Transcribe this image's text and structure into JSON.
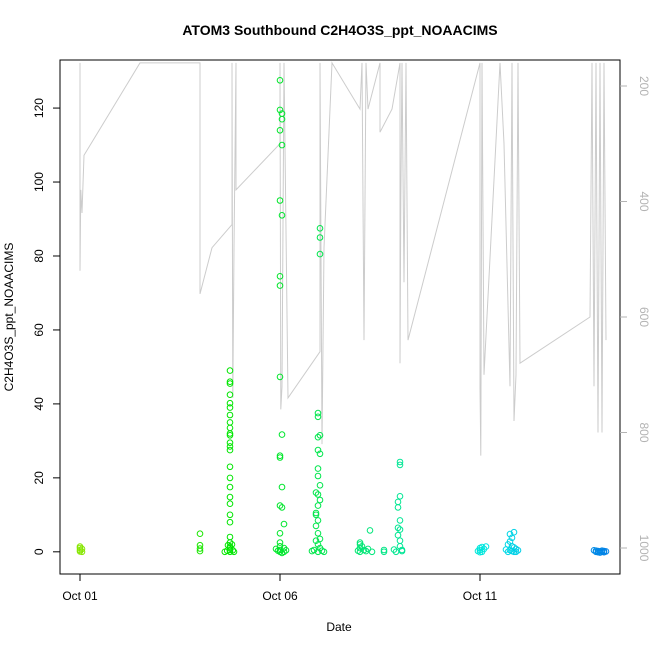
{
  "chart_data": {
    "type": "scatter",
    "title": "ATOM3 Southbound C2H4O3S_ppt_NOAACIMS",
    "xlabel": "Date",
    "ylabel": "C2H4O3S_ppt_NOAACIMS",
    "x_tick_labels": [
      "Oct 01",
      "Oct 06",
      "Oct 11"
    ],
    "x_ticks_day": [
      1,
      6,
      11
    ],
    "xlim_day": [
      0.5,
      14.5
    ],
    "ylim": [
      -6,
      133
    ],
    "y_ticks": [
      0,
      20,
      40,
      60,
      80,
      100,
      120
    ],
    "y2_ticks": [
      200,
      400,
      600,
      800,
      1000
    ],
    "y2lim_reversed": [
      1045,
      155
    ],
    "grid": false,
    "legend": "none",
    "series": [
      {
        "points": [
          [
            1.0,
            1.4
          ],
          [
            1.0,
            1.0
          ],
          [
            1.0,
            0.5
          ],
          [
            1.0,
            0.1
          ],
          [
            1.05,
            0.8
          ],
          [
            1.05,
            0.0
          ],
          [
            4.0,
            4.9
          ],
          [
            4.0,
            1.8
          ],
          [
            4.0,
            0.9
          ],
          [
            4.0,
            0.2
          ],
          [
            4.75,
            49
          ],
          [
            4.75,
            46
          ],
          [
            4.75,
            45.5
          ],
          [
            4.75,
            42.5
          ],
          [
            4.75,
            40.2
          ],
          [
            4.75,
            39
          ],
          [
            4.75,
            37
          ],
          [
            4.75,
            35
          ],
          [
            4.75,
            33.5
          ],
          [
            4.75,
            32.0
          ],
          [
            4.75,
            31.5
          ],
          [
            4.75,
            29.5
          ],
          [
            4.75,
            28.5
          ],
          [
            4.75,
            27.5
          ],
          [
            4.75,
            23.0
          ],
          [
            4.75,
            20.0
          ],
          [
            4.75,
            17.5
          ],
          [
            4.75,
            14.8
          ],
          [
            4.75,
            13.0
          ],
          [
            4.75,
            10.0
          ],
          [
            4.75,
            8.0
          ],
          [
            4.75,
            4.0
          ],
          [
            4.75,
            2.5
          ],
          [
            4.75,
            1.5
          ],
          [
            4.75,
            1.0
          ],
          [
            4.75,
            0.5
          ],
          [
            4.75,
            0.0
          ],
          [
            4.68,
            0.3
          ],
          [
            4.62,
            0.0
          ],
          [
            4.82,
            0.4
          ],
          [
            4.8,
            2.0
          ],
          [
            4.7,
            1.8
          ],
          [
            4.85,
            0.0
          ],
          [
            6.0,
            127.5
          ],
          [
            6.0,
            119.5
          ],
          [
            6.05,
            118.5
          ],
          [
            6.05,
            117
          ],
          [
            6.0,
            114
          ],
          [
            6.05,
            110
          ],
          [
            6.0,
            95
          ],
          [
            6.05,
            91
          ],
          [
            6.0,
            74.5
          ],
          [
            6.0,
            72
          ],
          [
            6.0,
            47.3
          ],
          [
            6.05,
            31.7
          ],
          [
            6.0,
            26.0
          ],
          [
            6.0,
            25.5
          ],
          [
            6.05,
            17.5
          ],
          [
            6.0,
            12.5
          ],
          [
            6.05,
            12.0
          ],
          [
            6.1,
            7.5
          ],
          [
            6.0,
            5.0
          ],
          [
            6.0,
            2.5
          ],
          [
            6.0,
            1.5
          ],
          [
            6.0,
            0.5
          ],
          [
            6.0,
            0.0
          ],
          [
            5.95,
            0.3
          ],
          [
            6.1,
            0.0
          ],
          [
            6.15,
            0.4
          ],
          [
            6.1,
            1.0
          ],
          [
            5.9,
            0.8
          ],
          [
            6.05,
            -0.3
          ],
          [
            7.0,
            87.5
          ],
          [
            7.0,
            85
          ],
          [
            7.0,
            80.5
          ],
          [
            6.95,
            37.5
          ],
          [
            6.95,
            36.5
          ],
          [
            7.0,
            31.5
          ],
          [
            6.95,
            31.0
          ],
          [
            6.95,
            27.5
          ],
          [
            7.0,
            26.5
          ],
          [
            6.95,
            22.5
          ],
          [
            6.95,
            20.5
          ],
          [
            7.0,
            18.0
          ],
          [
            6.9,
            16.0
          ],
          [
            6.95,
            15.5
          ],
          [
            7.0,
            14.0
          ],
          [
            6.95,
            12.5
          ],
          [
            6.9,
            10.5
          ],
          [
            6.9,
            10.0
          ],
          [
            6.95,
            8.5
          ],
          [
            6.9,
            7.0
          ],
          [
            6.95,
            5.0
          ],
          [
            7.0,
            3.5
          ],
          [
            6.9,
            3.0
          ],
          [
            6.95,
            2.0
          ],
          [
            7.0,
            1.0
          ],
          [
            6.85,
            0.5
          ],
          [
            6.95,
            0.0
          ],
          [
            7.05,
            0.3
          ],
          [
            7.1,
            0.0
          ],
          [
            6.8,
            0.2
          ],
          [
            8.0,
            2.5
          ],
          [
            8.0,
            2.0
          ],
          [
            8.05,
            1.5
          ],
          [
            8.0,
            1.0
          ],
          [
            8.1,
            0.5
          ],
          [
            7.95,
            0.3
          ],
          [
            8.0,
            0.0
          ],
          [
            8.15,
            0.2
          ],
          [
            8.3,
            0.0
          ],
          [
            8.25,
            5.8
          ],
          [
            8.2,
            0.8
          ],
          [
            8.6,
            0.0
          ],
          [
            8.6,
            0.5
          ],
          [
            9.0,
            24.3
          ],
          [
            9.0,
            23.5
          ],
          [
            9.0,
            15.0
          ],
          [
            8.95,
            13.5
          ],
          [
            8.95,
            12.0
          ],
          [
            9.0,
            8.5
          ],
          [
            8.95,
            6.5
          ],
          [
            9.0,
            6.0
          ],
          [
            8.95,
            4.5
          ],
          [
            9.0,
            3.0
          ],
          [
            9.0,
            1.5
          ],
          [
            9.05,
            0.5
          ],
          [
            8.9,
            0.0
          ],
          [
            9.05,
            0.2
          ],
          [
            8.85,
            0.6
          ],
          [
            11.0,
            1.0
          ],
          [
            11.05,
            1.3
          ],
          [
            11.0,
            0.5
          ],
          [
            11.1,
            0.8
          ],
          [
            10.95,
            0.2
          ],
          [
            11.05,
            0.0
          ],
          [
            11.15,
            1.4
          ],
          [
            11.0,
            -0.1
          ],
          [
            11.75,
            4.8
          ],
          [
            11.8,
            3.8
          ],
          [
            11.85,
            5.3
          ],
          [
            11.75,
            2.8
          ],
          [
            11.7,
            2.0
          ],
          [
            11.8,
            1.5
          ],
          [
            11.85,
            1.2
          ],
          [
            11.9,
            0.8
          ],
          [
            11.75,
            0.5
          ],
          [
            11.8,
            0.2
          ],
          [
            11.85,
            0.0
          ],
          [
            11.95,
            0.4
          ],
          [
            11.7,
            0.0
          ],
          [
            11.9,
            0.0
          ],
          [
            11.65,
            0.6
          ],
          [
            13.85,
            0.4
          ],
          [
            13.9,
            0.3
          ],
          [
            13.95,
            0.2
          ],
          [
            14.0,
            0.1
          ],
          [
            14.05,
            0.0
          ],
          [
            14.1,
            0.2
          ],
          [
            13.9,
            0.0
          ],
          [
            14.0,
            -0.2
          ],
          [
            14.1,
            -0.1
          ],
          [
            14.05,
            0.3
          ],
          [
            13.95,
            -0.1
          ],
          [
            14.15,
            0.1
          ]
        ]
      }
    ],
    "altitude_trace": [
      [
        1.0,
        160
      ],
      [
        1.0,
        520
      ],
      [
        1.02,
        380
      ],
      [
        1.05,
        420
      ],
      [
        1.1,
        320
      ],
      [
        2.5,
        160
      ],
      [
        4.0,
        160
      ],
      [
        4.0,
        560
      ],
      [
        4.3,
        480
      ],
      [
        4.8,
        440
      ],
      [
        4.8,
        160
      ],
      [
        4.82,
        740
      ],
      [
        4.85,
        480
      ],
      [
        4.9,
        160
      ],
      [
        4.9,
        380
      ],
      [
        6.0,
        300
      ],
      [
        6.0,
        160
      ],
      [
        6.02,
        760
      ],
      [
        6.05,
        720
      ],
      [
        6.1,
        160
      ],
      [
        6.2,
        740
      ],
      [
        7.0,
        660
      ],
      [
        7.0,
        160
      ],
      [
        7.05,
        820
      ],
      [
        7.1,
        480
      ],
      [
        7.3,
        160
      ],
      [
        8.0,
        240
      ],
      [
        8.05,
        160
      ],
      [
        8.1,
        640
      ],
      [
        8.15,
        160
      ],
      [
        8.2,
        240
      ],
      [
        8.5,
        160
      ],
      [
        8.5,
        280
      ],
      [
        8.8,
        240
      ],
      [
        9.0,
        160
      ],
      [
        9.0,
        680
      ],
      [
        9.02,
        400
      ],
      [
        9.05,
        160
      ],
      [
        9.1,
        540
      ],
      [
        9.15,
        160
      ],
      [
        9.2,
        640
      ],
      [
        11.0,
        160
      ],
      [
        11.0,
        720
      ],
      [
        11.02,
        840
      ],
      [
        11.05,
        160
      ],
      [
        11.1,
        700
      ],
      [
        11.5,
        160
      ],
      [
        11.6,
        300
      ],
      [
        11.75,
        720
      ],
      [
        11.8,
        160
      ],
      [
        11.85,
        780
      ],
      [
        11.9,
        700
      ],
      [
        11.95,
        160
      ],
      [
        12.0,
        680
      ],
      [
        13.75,
        600
      ],
      [
        13.8,
        160
      ],
      [
        13.85,
        720
      ],
      [
        13.9,
        160
      ],
      [
        13.95,
        800
      ],
      [
        14.0,
        160
      ],
      [
        14.05,
        800
      ],
      [
        14.1,
        160
      ],
      [
        14.15,
        640
      ]
    ]
  }
}
